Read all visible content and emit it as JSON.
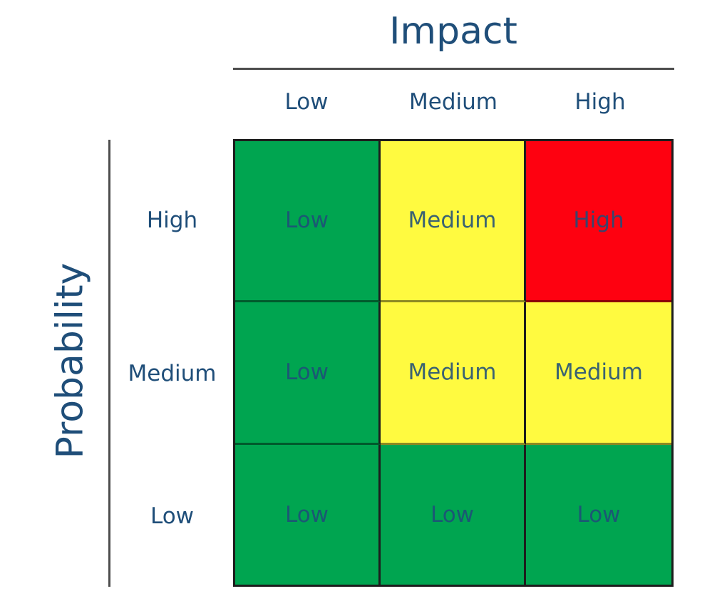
{
  "chart_data": {
    "type": "heatmap",
    "x_axis": {
      "title": "Impact",
      "labels": [
        "Low",
        "Medium",
        "High"
      ]
    },
    "y_axis": {
      "title": "Probability",
      "labels": [
        "High",
        "Medium",
        "Low"
      ]
    },
    "cells": [
      [
        "Low",
        "Medium",
        "High"
      ],
      [
        "Low",
        "Medium",
        "Medium"
      ],
      [
        "Low",
        "Low",
        "Low"
      ]
    ],
    "cell_colors": [
      [
        "#00A550",
        "#FFFA40",
        "#FE0110"
      ],
      [
        "#00A550",
        "#FFFA40",
        "#FFFA40"
      ],
      [
        "#00A550",
        "#00A550",
        "#00A550"
      ]
    ],
    "colors": {
      "green": "#00A550",
      "yellow": "#FFFA40",
      "red": "#FE0110",
      "label_text": "#1F4E79",
      "axis_line": "#4D4D4D",
      "cell_border": "#1D1D1D"
    },
    "layout": {
      "grid": "3x3",
      "legend": "none"
    }
  }
}
